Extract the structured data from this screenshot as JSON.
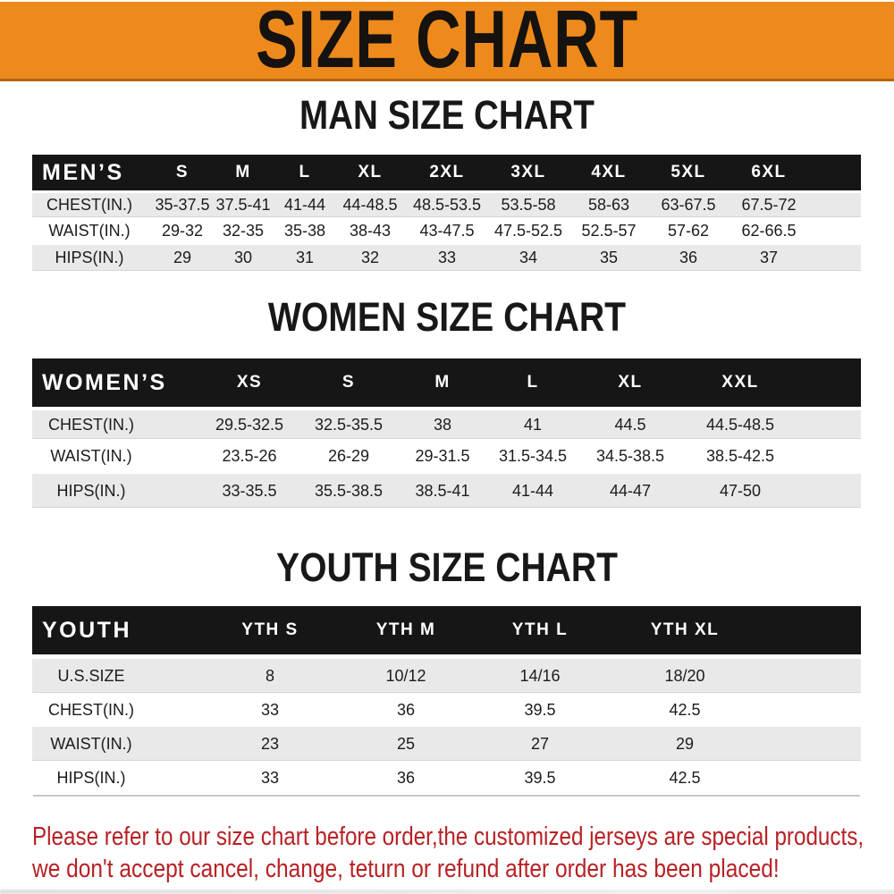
{
  "banner": {
    "label": "SIZE CHART"
  },
  "colors": {
    "banner_bg": "#EE8A1C",
    "banner_edge": "#B4660E",
    "header_bar_bg": "#161616",
    "header_text": "#FFFFFF",
    "row_shade": "#E9E9E9",
    "body_text": "#1C1C1C",
    "note_text": "#BE2125"
  },
  "sections": [
    {
      "id": "men",
      "heading": "MAN SIZE CHART",
      "table": {
        "label": "MEN’S",
        "sizes": [
          "S",
          "M",
          "L",
          "XL",
          "2XL",
          "3XL",
          "4XL",
          "5XL",
          "6XL"
        ],
        "rows": [
          {
            "label": "CHEST(IN.)",
            "values": [
              "35-37.5",
              "37.5-41",
              "41-44",
              "44-48.5",
              "48.5-53.5",
              "53.5-58",
              "58-63",
              "63-67.5",
              "67.5-72"
            ]
          },
          {
            "label": "WAIST(IN.)",
            "values": [
              "29-32",
              "32-35",
              "35-38",
              "38-43",
              "43-47.5",
              "47.5-52.5",
              "52.5-57",
              "57-62",
              "62-66.5"
            ]
          },
          {
            "label": "HIPS(IN.)",
            "values": [
              "29",
              "30",
              "31",
              "32",
              "33",
              "34",
              "35",
              "36",
              "37"
            ]
          }
        ]
      }
    },
    {
      "id": "women",
      "heading": "WOMEN SIZE CHART",
      "table": {
        "label": "WOMEN’S",
        "sizes": [
          "XS",
          "S",
          "M",
          "L",
          "XL",
          "XXL"
        ],
        "rows": [
          {
            "label": "CHEST(IN.)",
            "values": [
              "29.5-32.5",
              "32.5-35.5",
              "38",
              "41",
              "44.5",
              "44.5-48.5"
            ]
          },
          {
            "label": "WAIST(IN.)",
            "values": [
              "23.5-26",
              "26-29",
              "29-31.5",
              "31.5-34.5",
              "34.5-38.5",
              "38.5-42.5"
            ]
          },
          {
            "label": "HIPS(IN.)",
            "values": [
              "33-35.5",
              "35.5-38.5",
              "38.5-41",
              "41-44",
              "44-47",
              "47-50"
            ]
          }
        ]
      }
    },
    {
      "id": "youth",
      "heading": "YOUTH SIZE CHART",
      "table": {
        "label": "YOUTH",
        "sizes": [
          "YTH S",
          "YTH M",
          "YTH L",
          "YTH XL"
        ],
        "rows": [
          {
            "label": "U.S.SIZE",
            "values": [
              "8",
              "10/12",
              "14/16",
              "18/20"
            ]
          },
          {
            "label": "CHEST(IN.)",
            "values": [
              "33",
              "36",
              "39.5",
              "42.5"
            ]
          },
          {
            "label": "WAIST(IN.)",
            "values": [
              "23",
              "25",
              "27",
              "29"
            ]
          },
          {
            "label": "HIPS(IN.)",
            "values": [
              "33",
              "36",
              "39.5",
              "42.5"
            ]
          }
        ]
      }
    }
  ],
  "note": {
    "lines": [
      "Please refer to our size chart before order,the customized jerseys are special products,",
      "we don't accept cancel, change, teturn or refund after order has been placed!"
    ]
  }
}
